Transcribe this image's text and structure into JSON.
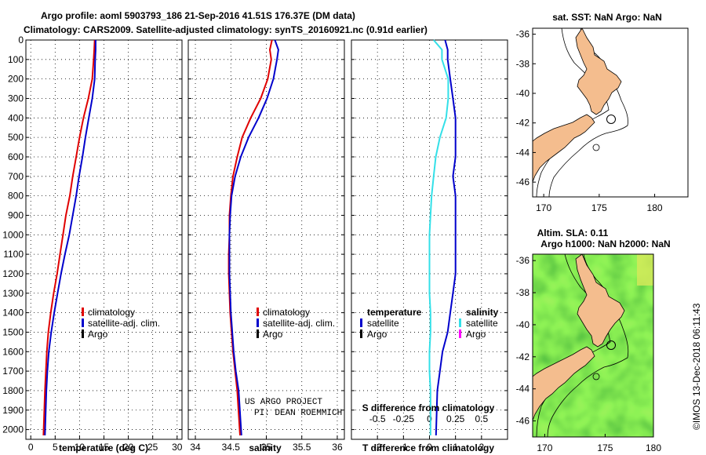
{
  "header": {
    "line1": "Argo profile: aoml 5903793_186 21-Sep-2016 41.51S 176.37E (DM data)",
    "line2": "Climatology: CARS2009. Satellite-adjusted climatology: synTS_20160921.nc (0.91d earlier)"
  },
  "colors": {
    "climatology": "#e00000",
    "satellite": "#0000cc",
    "satellite_s": "#33e0e8",
    "argo": "#000000",
    "argo_s": "#ff00ff",
    "land": "#f4bd8e",
    "sla_field": "#52cc3a"
  },
  "chart_data": [
    {
      "type": "line",
      "xlabel": "temperature (deg C)",
      "ylabel": "",
      "xlim": [
        -1,
        31
      ],
      "ylim": [
        2050,
        0
      ],
      "xticks": [
        0,
        5,
        10,
        15,
        20,
        25,
        30
      ],
      "yticks": [
        0,
        100,
        200,
        300,
        400,
        500,
        600,
        700,
        800,
        900,
        1000,
        1100,
        1200,
        1300,
        1400,
        1500,
        1600,
        1700,
        1800,
        1900,
        2000
      ],
      "grid": true,
      "legend_position": "lower-right",
      "series": [
        {
          "name": "climatology",
          "color_key": "climatology",
          "x": [
            13.1,
            13.0,
            12.9,
            12.6,
            11.8,
            10.8,
            10.0,
            9.3,
            8.6,
            8.0,
            7.2,
            6.6,
            6.0,
            5.4,
            4.7,
            4.1,
            3.6,
            3.3,
            3.1,
            2.9,
            2.6
          ],
          "y": [
            0,
            50,
            100,
            200,
            300,
            400,
            500,
            600,
            700,
            800,
            900,
            1000,
            1100,
            1200,
            1300,
            1400,
            1500,
            1600,
            1700,
            1800,
            2030
          ]
        },
        {
          "name": "satellite-adj. clim.",
          "color_key": "satellite",
          "x": [
            13.3,
            13.3,
            13.2,
            13.1,
            12.6,
            11.9,
            11.2,
            10.6,
            9.9,
            9.3,
            8.6,
            7.9,
            7.0,
            6.2,
            5.5,
            4.8,
            4.2,
            3.7,
            3.4,
            3.2,
            2.9
          ],
          "y": [
            0,
            50,
            100,
            200,
            300,
            400,
            500,
            600,
            700,
            800,
            900,
            1000,
            1100,
            1200,
            1300,
            1400,
            1500,
            1600,
            1700,
            1800,
            2030
          ]
        }
      ],
      "legend": [
        "climatology",
        "satellite-adj. clim.",
        "Argo"
      ]
    },
    {
      "type": "line",
      "xlabel": "salinity",
      "ylabel": "",
      "xlim": [
        33.9,
        36.1
      ],
      "ylim": [
        2050,
        0
      ],
      "xticks": [
        34,
        34.5,
        35,
        35.5,
        36
      ],
      "yticks": [
        0,
        100,
        200,
        300,
        400,
        500,
        600,
        700,
        800,
        900,
        1000,
        1100,
        1200,
        1300,
        1400,
        1500,
        1600,
        1700,
        1800,
        1900,
        2000
      ],
      "grid": true,
      "legend_position": "lower-right",
      "series": [
        {
          "name": "climatology",
          "color_key": "climatology",
          "x": [
            35.08,
            35.05,
            35.07,
            35.02,
            34.92,
            34.78,
            34.66,
            34.59,
            34.53,
            34.5,
            34.48,
            34.48,
            34.47,
            34.47,
            34.48,
            34.49,
            34.51,
            34.53,
            34.56,
            34.59,
            34.63
          ],
          "y": [
            0,
            50,
            100,
            200,
            300,
            400,
            500,
            600,
            700,
            800,
            900,
            1000,
            1100,
            1200,
            1300,
            1400,
            1500,
            1600,
            1700,
            1800,
            2030
          ]
        },
        {
          "name": "satellite-adj. clim.",
          "color_key": "satellite",
          "x": [
            35.12,
            35.17,
            35.15,
            35.1,
            35.01,
            34.89,
            34.75,
            34.64,
            34.56,
            34.51,
            34.49,
            34.48,
            34.48,
            34.48,
            34.49,
            34.5,
            34.52,
            34.54,
            34.57,
            34.61,
            34.65
          ],
          "y": [
            0,
            50,
            100,
            200,
            300,
            400,
            500,
            600,
            700,
            800,
            900,
            1000,
            1100,
            1200,
            1300,
            1400,
            1500,
            1600,
            1700,
            1800,
            2030
          ]
        }
      ],
      "legend": [
        "climatology",
        "satellite-adj. clim.",
        "Argo"
      ],
      "annotation": [
        "US ARGO PROJECT",
        "PI: DEAN ROEMMICH"
      ]
    },
    {
      "type": "line",
      "xlabel": "T difference from climatology",
      "ylabel": "",
      "xlim": [
        -3,
        3
      ],
      "ylim": [
        2050,
        0
      ],
      "xticks": [
        -2,
        -1,
        0,
        1,
        2
      ],
      "yticks": [
        0,
        100,
        200,
        300,
        400,
        500,
        600,
        700,
        800,
        900,
        1000,
        1100,
        1200,
        1300,
        1400,
        1500,
        1600,
        1700,
        1800,
        1900,
        2000
      ],
      "grid": true,
      "legend_position": "lower",
      "series": [
        {
          "name": "satellite",
          "group": "temperature",
          "color_key": "satellite",
          "x": [
            0.6,
            0.7,
            0.7,
            0.8,
            0.9,
            1.0,
            1.0,
            1.0,
            0.9,
            1.0,
            1.0,
            1.0,
            1.0,
            1.0,
            0.9,
            0.8,
            0.7,
            0.5,
            0.4,
            0.3,
            0.25
          ],
          "y": [
            0,
            50,
            100,
            200,
            300,
            400,
            500,
            600,
            700,
            800,
            900,
            1000,
            1100,
            1200,
            1300,
            1400,
            1500,
            1600,
            1700,
            1800,
            2030
          ]
        },
        {
          "name": "satellite",
          "group": "salinity",
          "color_key": "satellite_s",
          "x": [
            0.04,
            0.12,
            0.12,
            0.18,
            0.18,
            0.16,
            0.1,
            0.06,
            0.04,
            0.02,
            0.01,
            0.0,
            0.0,
            0.0,
            0.0,
            0.01,
            0.01,
            0.0,
            0.0,
            0.01,
            0.01
          ],
          "y": [
            0,
            50,
            100,
            200,
            300,
            400,
            500,
            600,
            700,
            800,
            900,
            1000,
            1100,
            1200,
            1300,
            1400,
            1500,
            1600,
            1700,
            1800,
            2030
          ]
        }
      ],
      "secondary_x": {
        "label": "S difference from climatology",
        "ticks": [
          -0.5,
          -0.25,
          0,
          0.25,
          0.5
        ],
        "tick_labels": [
          "-0.5",
          "-0.25",
          "0",
          "0.25",
          "0.5"
        ]
      },
      "legend_groups": [
        {
          "title": "temperature",
          "items": [
            "satellite",
            "Argo"
          ]
        },
        {
          "title": "salinity",
          "items": [
            "satellite",
            "Argo"
          ]
        }
      ]
    },
    {
      "type": "map",
      "title": "sat. SST: NaN Argo: NaN",
      "xlim": [
        169,
        183
      ],
      "ylim": [
        -47,
        -35.6
      ],
      "xticks": [
        170,
        175,
        180
      ],
      "yticks": [
        -36,
        -38,
        -40,
        -42,
        -44,
        -46
      ],
      "yticklabels": [
        "-36",
        "-38",
        "-40",
        "-42",
        "-44",
        "-46"
      ],
      "profile_marker": {
        "lon": 176.37,
        "lat": -41.51
      }
    },
    {
      "type": "map",
      "title_line1": "Altim. SLA: 0.11",
      "title_line2": "Argo h1000: NaN h2000: NaN",
      "xlim": [
        169,
        179
      ],
      "ylim": [
        -47,
        -35.6
      ],
      "xticks": [
        170,
        175,
        180
      ],
      "yticks": [
        -36,
        -38,
        -40,
        -42,
        -44,
        -46
      ],
      "yticklabels": [
        "-36",
        "-38",
        "-40",
        "-42",
        "-44",
        "-46"
      ],
      "profile_marker": {
        "lon": 176.37,
        "lat": -41.51
      }
    }
  ],
  "credit": "©IMOS 13-Dec-2018 06:11:43"
}
